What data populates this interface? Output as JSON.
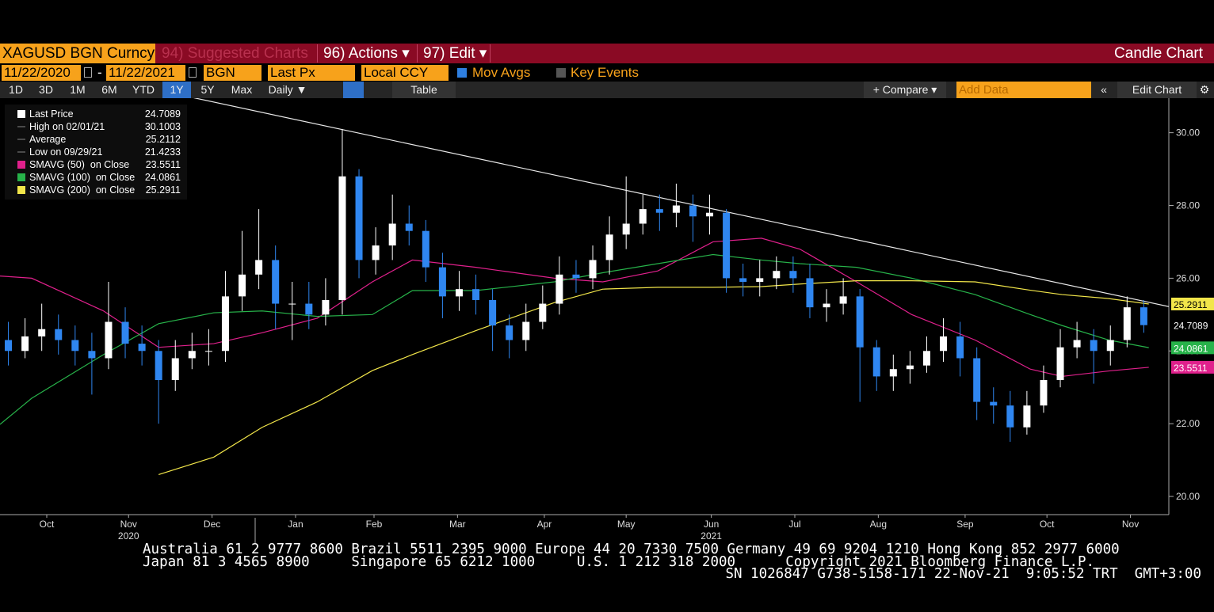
{
  "toolbar": {
    "security": "XAGUSD BGN Curncy",
    "suggested": "94) Suggested Charts",
    "actions": "96) Actions ▾",
    "edit": "97) Edit ▾",
    "chart_type": "Candle Chart"
  },
  "controls": {
    "start_date": "11/22/2020",
    "dash": "-",
    "end_date": "11/22/2021",
    "source": "BGN",
    "field": "Last Px",
    "currency": "Local CCY",
    "mov_avgs": "Mov Avgs",
    "key_events": "Key Events"
  },
  "periods": [
    "1D",
    "3D",
    "1M",
    "6M",
    "YTD",
    "1Y",
    "5Y",
    "Max"
  ],
  "frequency": "Daily ▼",
  "table": "Table",
  "compare": "+ Compare ▾",
  "add_data": "Add Data",
  "edit_chart": "Edit Chart",
  "chart_data": {
    "type": "candlestick",
    "up_color": "#ffffff",
    "down_color": "#2f86f0",
    "open": [
      24.3,
      24.0,
      24.4,
      24.6,
      24.3,
      24.0,
      23.8,
      24.8,
      24.2,
      24.0,
      23.2,
      23.8,
      24.0,
      24.0,
      25.5,
      26.1,
      26.5,
      25.3,
      25.3,
      25.0,
      25.4,
      28.8,
      26.5,
      26.9,
      27.5,
      27.3,
      26.3,
      25.5,
      25.7,
      25.4,
      24.7,
      24.3,
      24.8,
      25.3,
      26.1,
      26.0,
      26.5,
      27.2,
      27.5,
      27.9,
      27.8,
      28.0,
      27.7,
      27.8,
      26.0,
      25.9,
      26.0,
      26.2,
      26.0,
      25.2,
      25.3,
      25.5,
      24.1,
      23.3,
      23.5,
      23.6,
      24.0,
      24.4,
      23.8,
      22.6,
      22.5,
      21.9,
      22.5,
      23.2,
      24.1,
      24.3,
      24.0,
      24.3,
      25.2
    ],
    "high": [
      24.8,
      24.9,
      25.3,
      25.0,
      24.7,
      24.5,
      25.9,
      25.2,
      24.7,
      24.3,
      24.3,
      24.5,
      24.6,
      26.2,
      27.3,
      27.9,
      26.9,
      25.9,
      25.9,
      26.0,
      30.1,
      29.0,
      27.4,
      28.3,
      28.0,
      27.6,
      26.7,
      26.2,
      26.1,
      25.7,
      25.0,
      25.3,
      25.8,
      26.6,
      26.5,
      26.9,
      27.7,
      28.8,
      28.3,
      28.3,
      28.6,
      28.3,
      28.3,
      27.9,
      26.4,
      26.5,
      26.6,
      26.6,
      26.4,
      25.7,
      26.0,
      25.7,
      24.3,
      23.9,
      24.0,
      24.4,
      24.9,
      24.8,
      24.1,
      23.0,
      22.9,
      22.9,
      23.6,
      24.6,
      24.8,
      24.6,
      24.7,
      25.5,
      25.4
    ],
    "low": [
      23.6,
      23.8,
      24.0,
      23.9,
      23.6,
      22.8,
      23.5,
      23.8,
      23.6,
      22.0,
      22.9,
      23.5,
      23.6,
      23.7,
      25.1,
      25.7,
      24.6,
      24.3,
      24.6,
      24.7,
      25.0,
      26.0,
      26.1,
      26.5,
      26.9,
      25.9,
      24.9,
      25.1,
      25.0,
      24.0,
      23.8,
      24.0,
      24.6,
      25.0,
      25.6,
      25.7,
      26.1,
      26.8,
      27.2,
      27.3,
      27.4,
      27.0,
      27.2,
      25.6,
      25.5,
      25.5,
      25.7,
      25.6,
      24.9,
      24.8,
      25.0,
      22.6,
      22.9,
      22.9,
      23.1,
      23.4,
      23.7,
      23.3,
      22.1,
      22.0,
      21.5,
      21.7,
      22.3,
      23.0,
      23.8,
      23.1,
      23.6,
      24.1,
      24.5
    ],
    "close": [
      24.0,
      24.4,
      24.6,
      24.3,
      24.0,
      23.8,
      24.8,
      24.2,
      24.0,
      23.2,
      23.8,
      24.0,
      24.0,
      25.5,
      26.1,
      26.5,
      25.3,
      25.3,
      25.0,
      25.4,
      28.8,
      26.5,
      26.9,
      27.5,
      27.3,
      26.3,
      25.5,
      25.7,
      25.4,
      24.7,
      24.3,
      24.8,
      25.3,
      26.1,
      26.0,
      26.5,
      27.2,
      27.5,
      27.9,
      27.8,
      28.0,
      27.7,
      27.8,
      26.0,
      25.9,
      26.0,
      26.2,
      26.0,
      25.2,
      25.3,
      25.5,
      24.1,
      23.3,
      23.5,
      23.6,
      24.0,
      24.4,
      23.8,
      22.6,
      22.5,
      21.9,
      22.5,
      23.2,
      24.1,
      24.3,
      24.0,
      24.3,
      25.2,
      24.71
    ],
    "ma_x": [
      0,
      1.9,
      6.2,
      9.5,
      12.8,
      15.7,
      19.0,
      22.3,
      24.7,
      28.5,
      33.2,
      36.1,
      39.4,
      42.7,
      45.6,
      47.9,
      51.3,
      54.6,
      58.4,
      61.7,
      63.6,
      66.4,
      68.8
    ],
    "series": [
      {
        "name": "SMAVG (50)  on Close",
        "color": "#e0208c",
        "legend_value": 23.5511,
        "values": [
          26.06,
          26.0,
          25.1,
          24.1,
          24.2,
          24.5,
          24.9,
          25.9,
          26.5,
          26.3,
          26.0,
          25.9,
          26.2,
          27.0,
          27.1,
          26.8,
          25.9,
          25.0,
          24.3,
          23.5,
          23.3,
          23.45,
          23.55
        ]
      },
      {
        "name": "SMAVG (100)  on Close",
        "color": "#27b34a",
        "legend_value": 24.0861,
        "values": [
          21.98,
          22.7,
          23.9,
          24.75,
          25.05,
          25.1,
          24.95,
          25.0,
          25.66,
          25.66,
          25.9,
          26.15,
          26.4,
          26.65,
          26.5,
          26.4,
          26.3,
          26.0,
          25.55,
          25.0,
          24.7,
          24.3,
          24.09
        ]
      },
      {
        "name": "SMAVG (200)  on Close",
        "color": "#f2e64a",
        "legend_value": 25.2911,
        "values": [
          null,
          null,
          null,
          20.6,
          21.08,
          21.9,
          22.6,
          23.46,
          23.9,
          24.56,
          25.33,
          25.7,
          25.75,
          25.75,
          25.77,
          25.84,
          25.93,
          25.93,
          25.9,
          25.67,
          25.55,
          25.44,
          25.29
        ]
      }
    ],
    "stats": [
      {
        "label": "Last Price",
        "value": 24.7089
      },
      {
        "label": "High on 02/01/21",
        "value": 30.1003
      },
      {
        "label": "Average",
        "value": 25.2112
      },
      {
        "label": "Low on 09/29/21",
        "value": 21.4233
      }
    ],
    "trendline": {
      "x": [
        10.7,
        70
      ],
      "values": [
        31.05,
        25.22
      ]
    },
    "xlim": [
      0,
      70
    ],
    "xticks": [
      {
        "value": 2.8,
        "label": "Oct"
      },
      {
        "value": 7.7,
        "label": "Nov"
      },
      {
        "value": 12.7,
        "label": "Dec"
      },
      {
        "value": 17.7,
        "label": "Jan"
      },
      {
        "value": 22.4,
        "label": "Feb"
      },
      {
        "value": 27.4,
        "label": "Mar"
      },
      {
        "value": 32.6,
        "label": "Apr"
      },
      {
        "value": 37.5,
        "label": "May"
      },
      {
        "value": 42.6,
        "label": "Jun"
      },
      {
        "value": 47.6,
        "label": "Jul"
      },
      {
        "value": 52.6,
        "label": "Aug"
      },
      {
        "value": 57.8,
        "label": "Sep"
      },
      {
        "value": 62.7,
        "label": "Oct"
      },
      {
        "value": 67.7,
        "label": "Nov"
      }
    ],
    "years": [
      {
        "value": 7.7,
        "label": "2020"
      },
      {
        "value": 42.6,
        "label": "2021"
      }
    ],
    "ylim": [
      19.5,
      30.95
    ],
    "yticks": [
      {
        "value": 20,
        "label": "20.00"
      },
      {
        "value": 22,
        "label": "22.00"
      },
      {
        "value": 24,
        "label": "24.00"
      },
      {
        "value": 26,
        "label": "26.00"
      },
      {
        "value": 28,
        "label": "28.00"
      },
      {
        "value": 30,
        "label": "30.00"
      }
    ]
  },
  "footer": [
    "Australia 61 2 9777 8600 Brazil 5511 2395 9000 Europe 44 20 7330 7500 Germany 49 69 9204 1210 Hong Kong 852 2977 6000",
    "Japan 81 3 4565 8900     Singapore 65 6212 1000     U.S. 1 212 318 2000      Copyright 2021 Bloomberg Finance L.P.",
    "SN 1026847 G738-5158-171 22-Nov-21  9:05:52 TRT  GMT+3:00"
  ]
}
